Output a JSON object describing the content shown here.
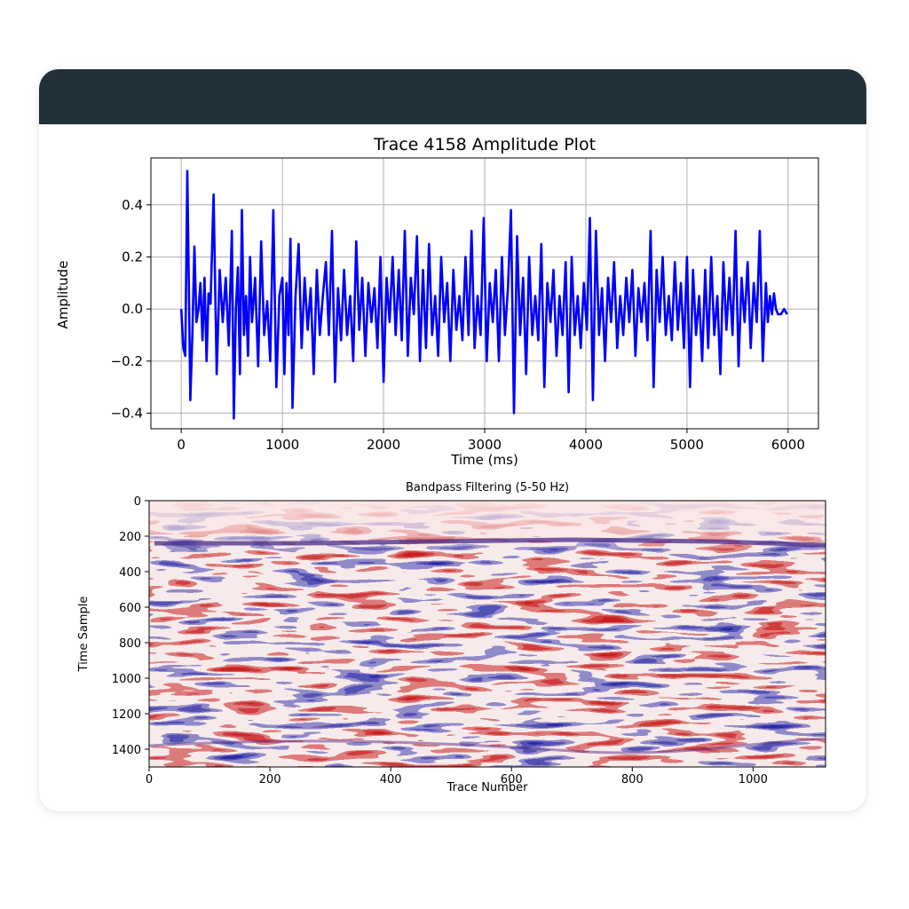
{
  "chart_data": [
    {
      "type": "line",
      "title": "Trace 4158 Amplitude Plot",
      "xlabel": "Time (ms)",
      "ylabel": "Amplitude",
      "xlim": [
        -300,
        6300
      ],
      "ylim": [
        -0.46,
        0.58
      ],
      "xticks": [
        0,
        1000,
        2000,
        3000,
        4000,
        5000,
        6000
      ],
      "yticks": [
        -0.4,
        -0.2,
        0.0,
        0.2,
        0.4
      ],
      "ytick_labels": [
        "−0.4",
        "−0.2",
        "0.0",
        "0.2",
        "0.4"
      ],
      "grid": true,
      "line_color": "#0000ff",
      "series": [
        {
          "x": [
            0,
            20,
            40,
            60,
            75,
            90,
            110,
            130,
            150,
            170,
            190,
            210,
            230,
            250,
            270,
            290,
            320,
            350,
            380,
            410,
            440,
            470,
            500,
            520,
            540,
            560,
            580,
            600,
            620,
            640,
            660,
            680,
            700,
            730,
            760,
            790,
            820,
            850,
            880,
            910,
            940,
            970,
            1000,
            1020,
            1040,
            1060,
            1080,
            1100,
            1130,
            1160,
            1190,
            1220,
            1250,
            1280,
            1310,
            1340,
            1370,
            1400,
            1430,
            1460,
            1490,
            1520,
            1550,
            1580,
            1610,
            1640,
            1670,
            1700,
            1730,
            1760,
            1790,
            1820,
            1850,
            1880,
            1910,
            1940,
            1970,
            2000,
            2030,
            2060,
            2090,
            2120,
            2150,
            2180,
            2210,
            2240,
            2270,
            2300,
            2330,
            2360,
            2390,
            2420,
            2450,
            2480,
            2510,
            2540,
            2570,
            2600,
            2630,
            2660,
            2690,
            2720,
            2750,
            2780,
            2810,
            2840,
            2870,
            2900,
            2930,
            2960,
            2990,
            3020,
            3050,
            3080,
            3110,
            3140,
            3170,
            3200,
            3230,
            3260,
            3290,
            3320,
            3350,
            3380,
            3410,
            3440,
            3470,
            3500,
            3530,
            3560,
            3590,
            3620,
            3650,
            3680,
            3710,
            3740,
            3770,
            3800,
            3830,
            3860,
            3890,
            3920,
            3950,
            3980,
            4010,
            4040,
            4070,
            4100,
            4130,
            4160,
            4190,
            4220,
            4250,
            4280,
            4310,
            4340,
            4370,
            4400,
            4430,
            4460,
            4490,
            4520,
            4550,
            4580,
            4610,
            4640,
            4670,
            4700,
            4730,
            4760,
            4790,
            4820,
            4850,
            4880,
            4910,
            4940,
            4970,
            5000,
            5030,
            5060,
            5090,
            5120,
            5150,
            5180,
            5210,
            5240,
            5270,
            5300,
            5330,
            5360,
            5390,
            5420,
            5450,
            5480,
            5510,
            5540,
            5570,
            5600,
            5630,
            5660,
            5690,
            5720,
            5750,
            5780,
            5800,
            5820,
            5840,
            5860,
            5880,
            5900,
            5930,
            5960,
            5990
          ],
          "y": [
            0.0,
            -0.15,
            -0.18,
            0.53,
            0.1,
            -0.35,
            -0.1,
            0.24,
            -0.05,
            0.0,
            0.1,
            -0.12,
            0.12,
            -0.2,
            0.06,
            0.02,
            0.44,
            -0.25,
            0.15,
            -0.05,
            0.12,
            -0.14,
            0.3,
            -0.42,
            0.0,
            0.16,
            -0.25,
            0.38,
            -0.1,
            0.05,
            -0.18,
            0.2,
            -0.05,
            0.12,
            -0.22,
            0.26,
            -0.1,
            0.03,
            -0.2,
            0.38,
            -0.3,
            0.05,
            0.12,
            -0.25,
            0.1,
            -0.1,
            0.27,
            -0.38,
            0.05,
            0.25,
            -0.15,
            0.12,
            -0.08,
            0.08,
            -0.25,
            0.15,
            -0.1,
            0.05,
            0.18,
            -0.1,
            0.3,
            -0.28,
            0.08,
            -0.12,
            0.15,
            -0.1,
            0.05,
            -0.2,
            0.26,
            -0.08,
            0.12,
            -0.18,
            0.1,
            -0.05,
            0.08,
            -0.15,
            0.2,
            -0.28,
            0.12,
            -0.05,
            0.2,
            -0.1,
            0.15,
            -0.12,
            0.3,
            -0.18,
            0.12,
            -0.02,
            0.28,
            -0.2,
            0.15,
            -0.15,
            0.25,
            -0.1,
            0.05,
            -0.18,
            0.2,
            -0.05,
            0.1,
            -0.2,
            0.15,
            -0.08,
            0.05,
            -0.12,
            0.2,
            -0.1,
            0.3,
            -0.15,
            0.05,
            -0.1,
            0.35,
            -0.2,
            0.1,
            -0.05,
            0.15,
            -0.2,
            0.2,
            -0.1,
            0.08,
            0.38,
            -0.4,
            0.28,
            -0.1,
            0.12,
            -0.25,
            0.2,
            -0.1,
            0.05,
            -0.12,
            0.25,
            -0.3,
            0.1,
            -0.05,
            0.15,
            -0.18,
            0.05,
            -0.1,
            0.18,
            -0.32,
            0.2,
            -0.1,
            0.05,
            -0.15,
            0.1,
            -0.08,
            0.35,
            -0.35,
            0.3,
            -0.1,
            0.08,
            -0.2,
            0.12,
            -0.05,
            0.18,
            -0.15,
            0.05,
            -0.1,
            0.12,
            -0.05,
            0.15,
            -0.18,
            0.08,
            -0.05,
            0.1,
            -0.12,
            0.3,
            -0.3,
            0.15,
            -0.05,
            0.2,
            -0.1,
            0.05,
            -0.12,
            0.18,
            -0.08,
            0.1,
            -0.15,
            0.2,
            -0.3,
            0.15,
            -0.1,
            0.05,
            -0.2,
            0.15,
            -0.15,
            0.2,
            -0.1,
            0.05,
            -0.25,
            0.18,
            -0.08,
            0.12,
            -0.1,
            0.3,
            -0.22,
            0.12,
            -0.05,
            0.18,
            -0.15,
            0.1,
            -0.05,
            0.3,
            -0.2,
            0.1,
            -0.05,
            0.05,
            -0.02,
            0.06,
            0.0,
            -0.02,
            -0.02,
            0.0,
            -0.02
          ]
        }
      ]
    },
    {
      "type": "heatmap",
      "title": "Bandpass Filtering (5-50 Hz)",
      "xlabel": "Trace Number",
      "ylabel": "Time Sample",
      "xlim": [
        0,
        1120
      ],
      "ylim": [
        1500,
        0
      ],
      "xticks": [
        0,
        200,
        400,
        600,
        800,
        1000
      ],
      "yticks": [
        0,
        200,
        400,
        600,
        800,
        1000,
        1200,
        1400
      ],
      "colormap": [
        "#0000cc",
        "#ffffff",
        "#cc0000"
      ],
      "background": "#f8dede"
    }
  ]
}
